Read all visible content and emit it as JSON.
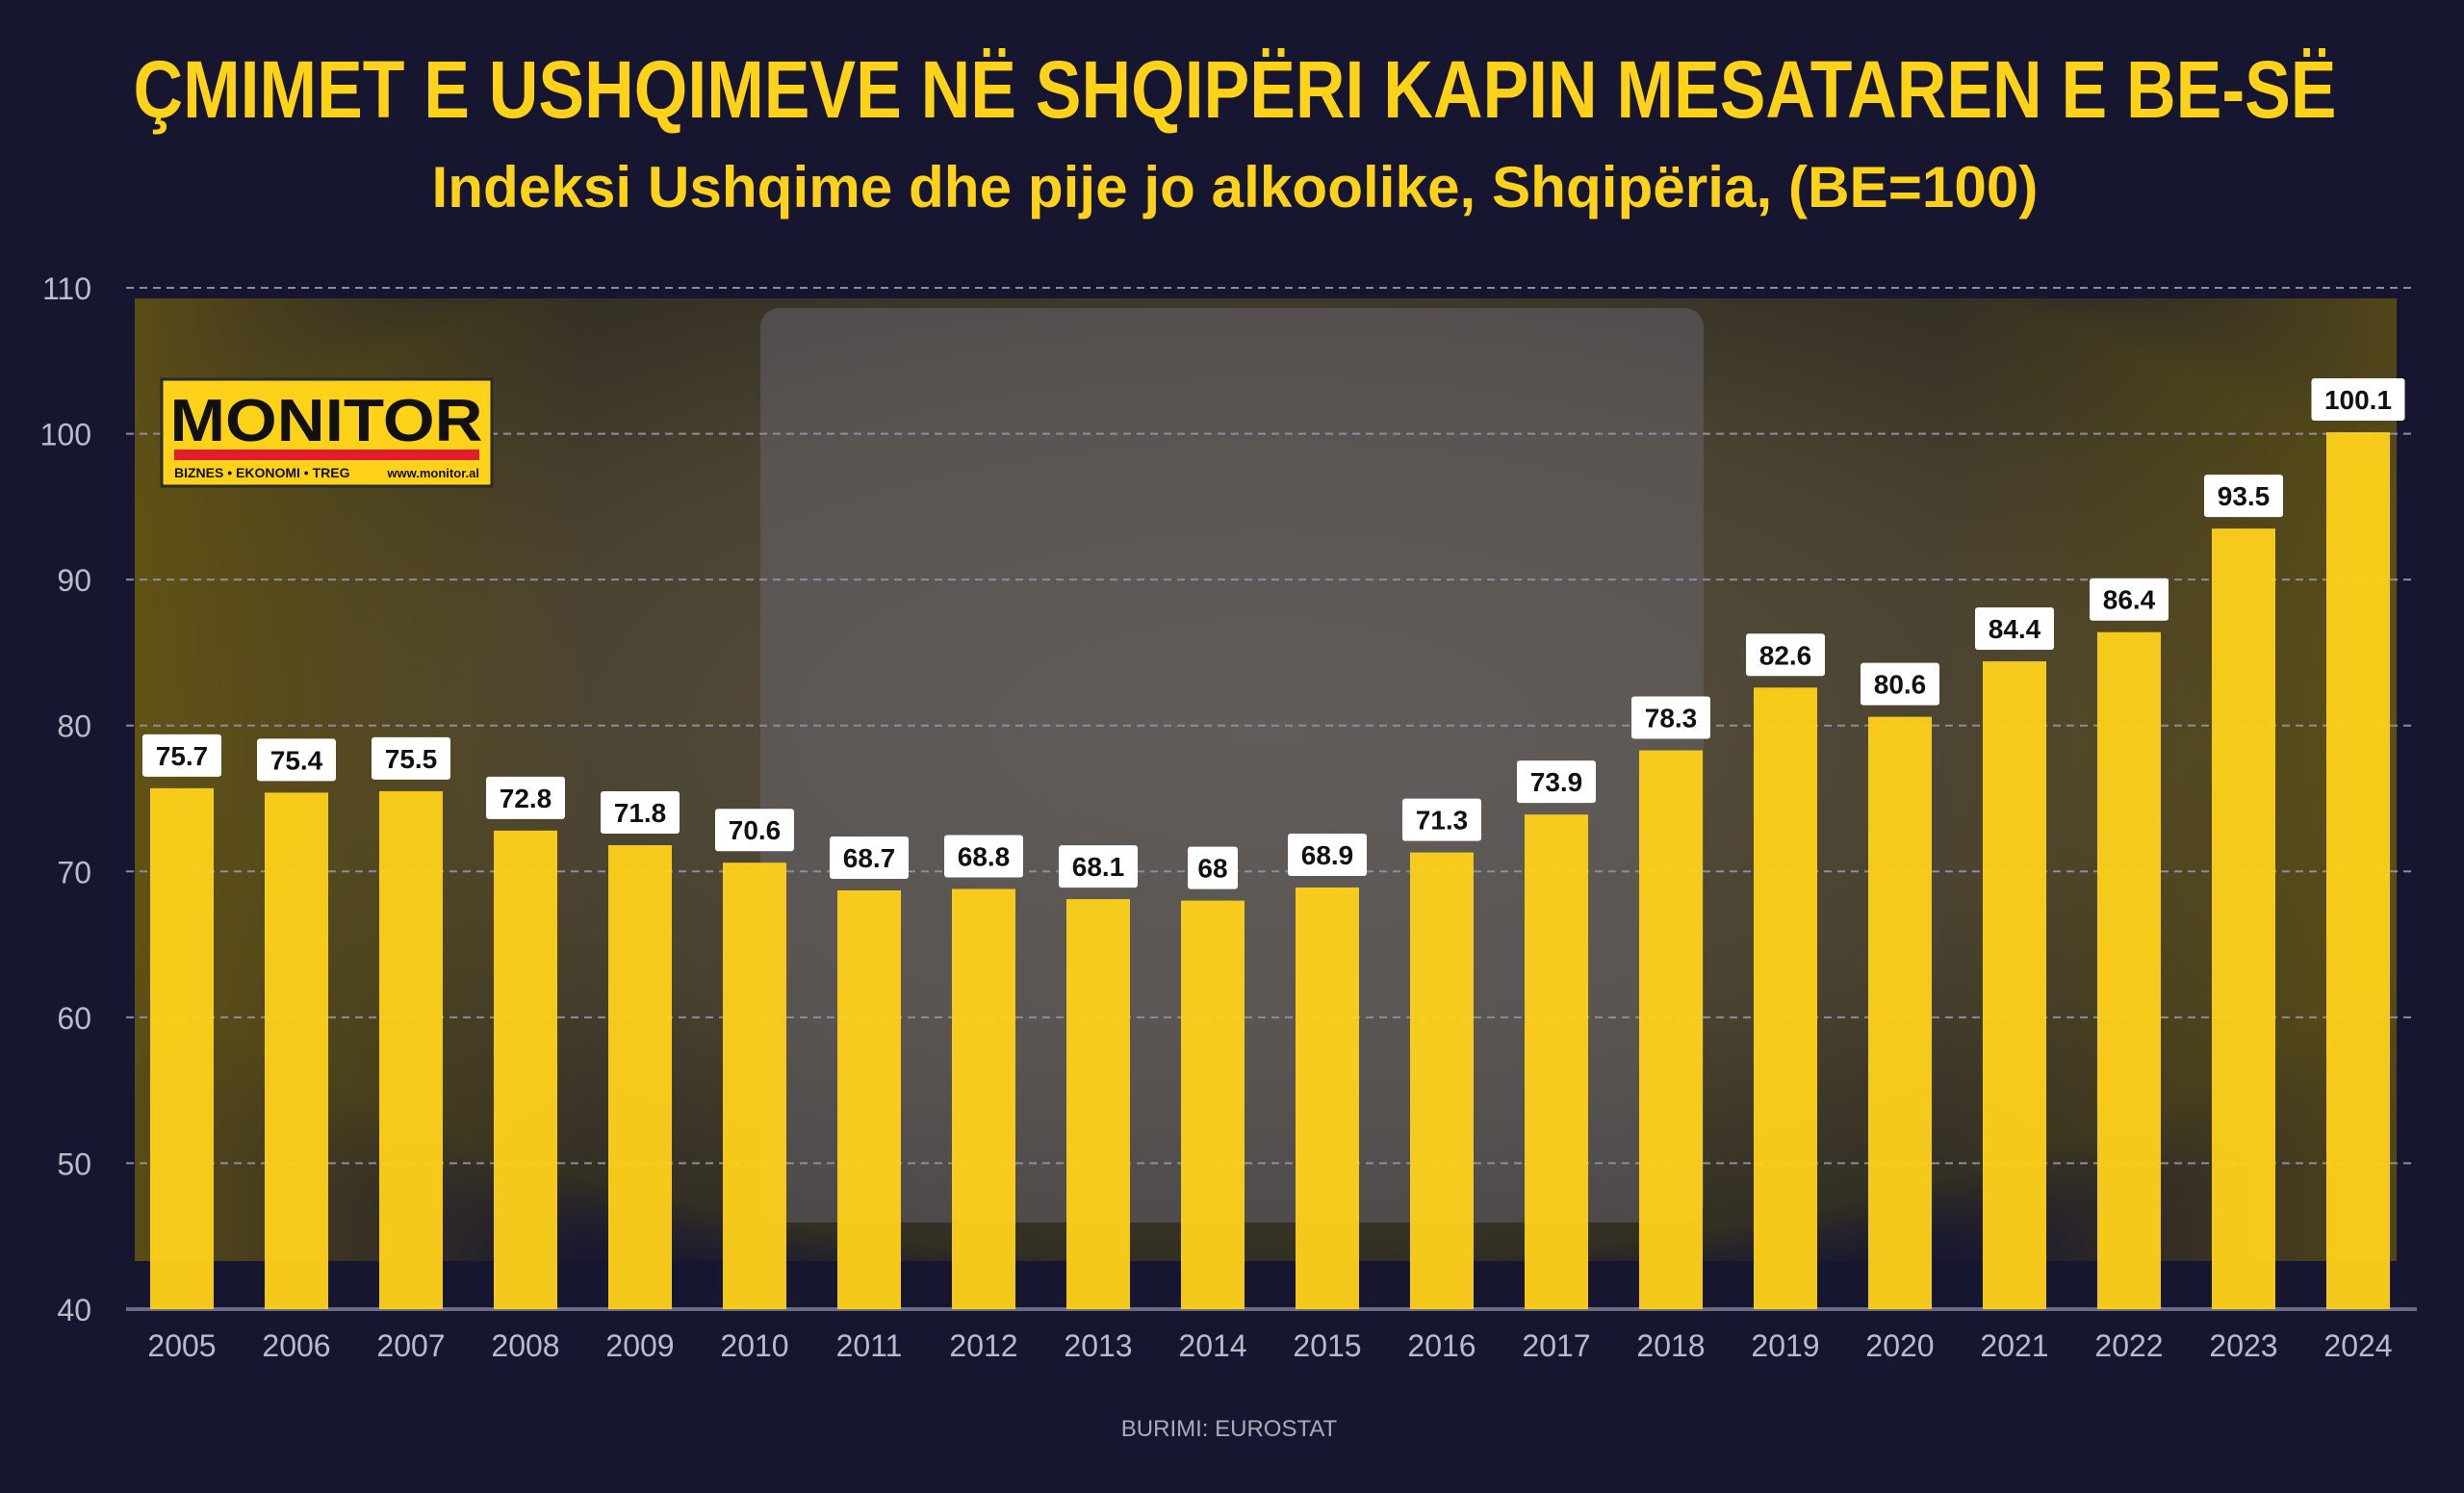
{
  "header": {
    "title": "ÇMIMET E USHQIMEVE NË SHQIPËRI KAPIN MESATAREN E BE-SË",
    "subtitle": "Indeksi Ushqime dhe pije jo alkoolike, Shqipëria, (BE=100)"
  },
  "logo": {
    "name": "MONITOR",
    "tagline": "BIZNES • EKONOMI • TREG",
    "url": "www.monitor.al"
  },
  "source": "BURIMI: EUROSTAT",
  "colors": {
    "background": "#161631",
    "bar": "#ffd21a",
    "title": "#ffd21a",
    "label_bg": "#ffffff"
  },
  "chart_data": {
    "type": "bar",
    "title": "ÇMIMET E USHQIMEVE NË SHQIPËRI KAPIN MESATAREN E BE-SË",
    "subtitle": "Indeksi Ushqime dhe pije jo alkoolike, Shqipëria, (BE=100)",
    "categories": [
      "2005",
      "2006",
      "2007",
      "2008",
      "2009",
      "2010",
      "2011",
      "2012",
      "2013",
      "2014",
      "2015",
      "2016",
      "2017",
      "2018",
      "2019",
      "2020",
      "2021",
      "2022",
      "2023",
      "2024"
    ],
    "values": [
      75.7,
      75.4,
      75.5,
      72.8,
      71.8,
      70.6,
      68.7,
      68.8,
      68.1,
      68,
      68.9,
      71.3,
      73.9,
      78.3,
      82.6,
      80.6,
      84.4,
      86.4,
      93.5,
      100.1
    ],
    "ylim": [
      40,
      110
    ],
    "yticks": [
      40,
      50,
      60,
      70,
      80,
      90,
      100,
      110
    ],
    "grid": true,
    "data_labels": true
  }
}
